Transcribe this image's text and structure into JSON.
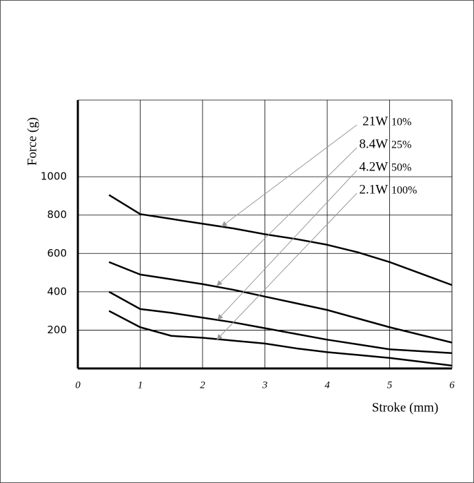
{
  "chart_data": {
    "type": "line",
    "x_label": "Stroke (mm)",
    "y_label": "Force (g)",
    "x": [
      0.5,
      1,
      1.5,
      2,
      2.5,
      3,
      3.5,
      4,
      4.5,
      5,
      5.5,
      6
    ],
    "series": [
      {
        "name": "21W",
        "duty": "10%",
        "color": "#000000",
        "values": [
          905,
          805,
          780,
          755,
          730,
          700,
          675,
          645,
          605,
          555,
          495,
          435
        ]
      },
      {
        "name": "8.4W",
        "duty": "25%",
        "color": "#000000",
        "values": [
          555,
          490,
          465,
          440,
          410,
          375,
          340,
          305,
          260,
          215,
          175,
          135
        ]
      },
      {
        "name": "4.2W",
        "duty": "50%",
        "color": "#000000",
        "values": [
          400,
          310,
          290,
          265,
          240,
          210,
          180,
          150,
          125,
          100,
          90,
          80
        ]
      },
      {
        "name": "2.1W",
        "duty": "100%",
        "color": "#000000",
        "values": [
          300,
          215,
          170,
          160,
          145,
          130,
          105,
          85,
          70,
          55,
          35,
          15
        ]
      }
    ],
    "xlim": [
      0,
      6
    ],
    "xticks": [
      0,
      1,
      2,
      3,
      4,
      5,
      6
    ],
    "ylim": [
      0,
      1400
    ],
    "yticks": [
      200,
      400,
      600,
      800,
      1000
    ],
    "grid": true
  }
}
